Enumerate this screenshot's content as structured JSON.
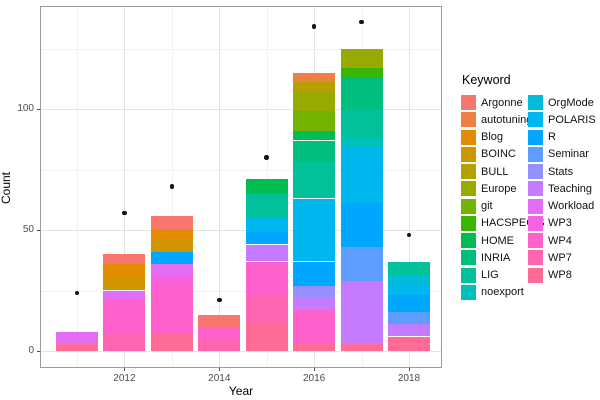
{
  "chart_data": {
    "type": "bar",
    "stacked": true,
    "title": "",
    "xlabel": "Year",
    "ylabel": "Count",
    "ylim": [
      0,
      143
    ],
    "grid": true,
    "y_major_ticks": [
      0,
      50,
      100
    ],
    "y_minor_ticks": [
      25,
      75,
      125
    ],
    "x_major_tick_labels": [
      "2012",
      "2014",
      "2016",
      "2018"
    ],
    "x_major_years": [
      2012,
      2014,
      2016,
      2018
    ],
    "x_minor_years": [
      2011,
      2013,
      2015,
      2017
    ],
    "years": [
      2011,
      2012,
      2013,
      2014,
      2015,
      2016,
      2017,
      2018
    ],
    "legend": {
      "title": "Keyword",
      "position": "right",
      "columns": [
        [
          "Argonne",
          "autotuning",
          "Blog",
          "BOINC",
          "BULL",
          "Europe",
          "git",
          "HACSPECIS",
          "HOME",
          "INRIA",
          "LIG",
          "noexport"
        ],
        [
          "OrgMode",
          "POLARIS",
          "R",
          "Seminar",
          "Stats",
          "Teaching",
          "Workload",
          "WP3",
          "WP4",
          "WP7",
          "WP8"
        ]
      ],
      "entries": [
        {
          "label": "Argonne",
          "color": "#F8766D"
        },
        {
          "label": "autotuning",
          "color": "#EE8044"
        },
        {
          "label": "Blog",
          "color": "#E18B00"
        },
        {
          "label": "BOINC",
          "color": "#CE9500"
        },
        {
          "label": "BULL",
          "color": "#B5A000"
        },
        {
          "label": "Europe",
          "color": "#98A900"
        },
        {
          "label": "git",
          "color": "#73B200"
        },
        {
          "label": "HACSPECIS",
          "color": "#39B600"
        },
        {
          "label": "HOME",
          "color": "#00BC51"
        },
        {
          "label": "INRIA",
          "color": "#00BE7D"
        },
        {
          "label": "LIG",
          "color": "#00C19A"
        },
        {
          "label": "noexport",
          "color": "#00C0BE"
        },
        {
          "label": "OrgMode",
          "color": "#00BCD8"
        },
        {
          "label": "POLARIS",
          "color": "#00B6EE"
        },
        {
          "label": "R",
          "color": "#00A7FF"
        },
        {
          "label": "Seminar",
          "color": "#5C9DFF"
        },
        {
          "label": "Stats",
          "color": "#9590FF"
        },
        {
          "label": "Teaching",
          "color": "#C57BFF"
        },
        {
          "label": "Workload",
          "color": "#E36EF6"
        },
        {
          "label": "WP3",
          "color": "#F562E2"
        },
        {
          "label": "WP4",
          "color": "#FF61CC"
        },
        {
          "label": "WP7",
          "color": "#FF64B0"
        },
        {
          "label": "WP8",
          "color": "#FF6B94"
        }
      ]
    },
    "bars": [
      {
        "year": 2011,
        "total": 8,
        "segments_top_to_bottom": [
          {
            "keyword": "Workload",
            "value": 5
          },
          {
            "keyword": "WP8",
            "value": 3
          }
        ]
      },
      {
        "year": 2012,
        "total": 40,
        "segments_top_to_bottom": [
          {
            "keyword": "Argonne",
            "value": 4
          },
          {
            "keyword": "Blog",
            "value": 6
          },
          {
            "keyword": "BOINC",
            "value": 5
          },
          {
            "keyword": "Workload",
            "value": 4
          },
          {
            "keyword": "WP4",
            "value": 14
          },
          {
            "keyword": "WP7",
            "value": 7
          }
        ]
      },
      {
        "year": 2013,
        "total": 56,
        "segments_top_to_bottom": [
          {
            "keyword": "Argonne",
            "value": 6
          },
          {
            "keyword": "Blog",
            "value": 4
          },
          {
            "keyword": "BOINC",
            "value": 5
          },
          {
            "keyword": "R",
            "value": 5
          },
          {
            "keyword": "Workload",
            "value": 5
          },
          {
            "keyword": "WP3",
            "value": 3
          },
          {
            "keyword": "WP4",
            "value": 21
          },
          {
            "keyword": "WP8",
            "value": 7
          }
        ]
      },
      {
        "year": 2014,
        "total": 15,
        "segments_top_to_bottom": [
          {
            "keyword": "Argonne",
            "value": 5
          },
          {
            "keyword": "WP4",
            "value": 5
          },
          {
            "keyword": "WP7",
            "value": 5
          }
        ]
      },
      {
        "year": 2015,
        "total": 71,
        "segments_top_to_bottom": [
          {
            "keyword": "HOME",
            "value": 6
          },
          {
            "keyword": "LIG",
            "value": 10
          },
          {
            "keyword": "POLARIS",
            "value": 6
          },
          {
            "keyword": "R",
            "value": 5
          },
          {
            "keyword": "Teaching",
            "value": 7
          },
          {
            "keyword": "WP4",
            "value": 14
          },
          {
            "keyword": "WP7",
            "value": 12
          },
          {
            "keyword": "WP8",
            "value": 11
          }
        ]
      },
      {
        "year": 2016,
        "total": 115,
        "segments_top_to_bottom": [
          {
            "keyword": "autotuning",
            "value": 4
          },
          {
            "keyword": "BULL",
            "value": 4
          },
          {
            "keyword": "Europe",
            "value": 8
          },
          {
            "keyword": "git",
            "value": 8
          },
          {
            "keyword": "HOME",
            "value": 4
          },
          {
            "keyword": "INRIA",
            "value": 9
          },
          {
            "keyword": "LIG",
            "value": 15
          },
          {
            "keyword": "POLARIS",
            "value": 26
          },
          {
            "keyword": "R",
            "value": 10
          },
          {
            "keyword": "Stats",
            "value": 5
          },
          {
            "keyword": "Teaching",
            "value": 5
          },
          {
            "keyword": "WP4",
            "value": 14
          },
          {
            "keyword": "WP8",
            "value": 3
          }
        ]
      },
      {
        "year": 2017,
        "total": 125,
        "segments_top_to_bottom": [
          {
            "keyword": "Europe",
            "value": 8
          },
          {
            "keyword": "HACSPECIS",
            "value": 4
          },
          {
            "keyword": "INRIA",
            "value": 13
          },
          {
            "keyword": "LIG",
            "value": 12
          },
          {
            "keyword": "noexport",
            "value": 4
          },
          {
            "keyword": "POLARIS",
            "value": 23
          },
          {
            "keyword": "R",
            "value": 18
          },
          {
            "keyword": "Seminar",
            "value": 14
          },
          {
            "keyword": "Teaching",
            "value": 26
          },
          {
            "keyword": "WP8",
            "value": 3
          }
        ]
      },
      {
        "year": 2018,
        "total": 37,
        "segments_top_to_bottom": [
          {
            "keyword": "LIG",
            "value": 6
          },
          {
            "keyword": "OrgMode",
            "value": 4
          },
          {
            "keyword": "POLARIS",
            "value": 4
          },
          {
            "keyword": "R",
            "value": 7
          },
          {
            "keyword": "Seminar",
            "value": 5
          },
          {
            "keyword": "Teaching",
            "value": 5
          },
          {
            "keyword": "WP8",
            "value": 6
          }
        ]
      }
    ],
    "points": [
      {
        "year": 2011,
        "value": 24
      },
      {
        "year": 2012,
        "value": 57
      },
      {
        "year": 2013,
        "value": 68
      },
      {
        "year": 2014,
        "value": 21
      },
      {
        "year": 2015,
        "value": 80
      },
      {
        "year": 2016,
        "value": 134
      },
      {
        "year": 2017,
        "value": 136
      },
      {
        "year": 2018,
        "value": 48
      }
    ],
    "colors": {
      "grid_major": "#e4e4e4",
      "grid_minor": "#f2f2f2",
      "panel_border": "#9a9a9a",
      "axis_text": "#4d4d4d",
      "point": "#141414",
      "background": "#ffffff"
    }
  }
}
